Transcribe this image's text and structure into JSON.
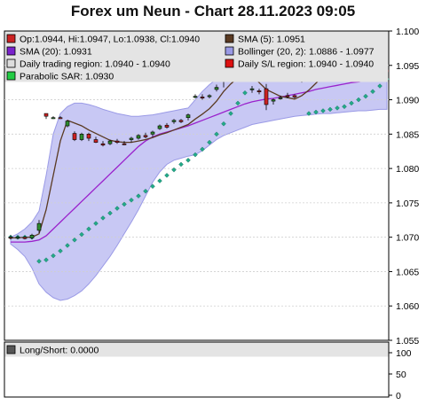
{
  "title": "Forex um Neun - Chart 28.11.2023 09:05",
  "colors": {
    "up": "#2e8b2e",
    "down": "#cc2222",
    "sma5": "#5a3a22",
    "sma20": "#9a22cc",
    "bollinger_fill": "#c8c8f4",
    "bollinger_line": "#9a9ae6",
    "sar": "#22aa88",
    "trading_region": "#ff8888",
    "legend_bg": "#e4e4e4"
  },
  "legend": [
    {
      "label": "Op:1.0944, Hi:1.0947, Lo:1.0938, Cl:1.0940",
      "swatch": "#cc2222",
      "row": 0,
      "col": 0
    },
    {
      "label": "SMA (5): 1.0951",
      "swatch": "#5a3a22",
      "row": 0,
      "col": 1
    },
    {
      "label": "SMA (20): 1.0931",
      "swatch": "#7a22cc",
      "row": 1,
      "col": 0
    },
    {
      "label": "Bollinger (20, 2): 1.0886 - 1.0977",
      "swatch": "#9a9ae6",
      "row": 1,
      "col": 1
    },
    {
      "label": "Daily trading region: 1.0940 - 1.0940",
      "swatch": "#dddddd",
      "row": 2,
      "col": 0
    },
    {
      "label": "Daily S/L region: 1.0940 - 1.0940",
      "swatch": "#dd1111",
      "row": 2,
      "col": 1
    },
    {
      "label": "Parabolic SAR: 1.0930",
      "swatch": "#22cc44",
      "row": 3,
      "col": 0
    }
  ],
  "lower_legend": {
    "label": "Long/Short: 0.0000",
    "swatch": "#555555"
  },
  "chart_data": [
    {
      "type": "candlestick",
      "y_ticks": [
        "1.100",
        "1.095",
        "1.090",
        "1.085",
        "1.080",
        "1.075",
        "1.070",
        "1.065",
        "1.060",
        "1.055"
      ],
      "ylim": [
        1.055,
        1.1
      ],
      "candles": [
        {
          "o": 1.07,
          "h": 1.0703,
          "l": 1.0697,
          "c": 1.0699
        },
        {
          "o": 1.0699,
          "h": 1.0702,
          "l": 1.0697,
          "c": 1.07
        },
        {
          "o": 1.07,
          "h": 1.0702,
          "l": 1.0697,
          "c": 1.0698
        },
        {
          "o": 1.0699,
          "h": 1.0705,
          "l": 1.0697,
          "c": 1.0703
        },
        {
          "o": 1.071,
          "h": 1.0725,
          "l": 1.0706,
          "c": 1.072
        },
        {
          "o": 1.088,
          "h": 1.088,
          "l": 1.0872,
          "c": 1.0876
        },
        {
          "o": 1.0874,
          "h": 1.0876,
          "l": 1.0872,
          "c": 1.0874
        },
        {
          "o": 1.0874,
          "h": 1.0876,
          "l": 1.0872,
          "c": 1.0873
        },
        {
          "o": 1.0862,
          "h": 1.087,
          "l": 1.086,
          "c": 1.0869
        },
        {
          "o": 1.0851,
          "h": 1.0854,
          "l": 1.084,
          "c": 1.0842
        },
        {
          "o": 1.0842,
          "h": 1.0852,
          "l": 1.084,
          "c": 1.085
        },
        {
          "o": 1.085,
          "h": 1.0852,
          "l": 1.084,
          "c": 1.0844
        },
        {
          "o": 1.0842,
          "h": 1.0846,
          "l": 1.0837,
          "c": 1.0838
        },
        {
          "o": 1.0836,
          "h": 1.084,
          "l": 1.0832,
          "c": 1.0834
        },
        {
          "o": 1.0836,
          "h": 1.0842,
          "l": 1.0834,
          "c": 1.084
        },
        {
          "o": 1.084,
          "h": 1.0843,
          "l": 1.0836,
          "c": 1.0838
        },
        {
          "o": 1.0836,
          "h": 1.084,
          "l": 1.0834,
          "c": 1.0835
        },
        {
          "o": 1.0842,
          "h": 1.0846,
          "l": 1.0838,
          "c": 1.0844
        },
        {
          "o": 1.0844,
          "h": 1.085,
          "l": 1.0842,
          "c": 1.0848
        },
        {
          "o": 1.0848,
          "h": 1.0852,
          "l": 1.0844,
          "c": 1.0846
        },
        {
          "o": 1.085,
          "h": 1.0855,
          "l": 1.0846,
          "c": 1.0853
        },
        {
          "o": 1.0858,
          "h": 1.0864,
          "l": 1.0856,
          "c": 1.0862
        },
        {
          "o": 1.0863,
          "h": 1.0866,
          "l": 1.0858,
          "c": 1.086
        },
        {
          "o": 1.0868,
          "h": 1.0872,
          "l": 1.0865,
          "c": 1.087
        },
        {
          "o": 1.087,
          "h": 1.0872,
          "l": 1.0866,
          "c": 1.0868
        },
        {
          "o": 1.0874,
          "h": 1.088,
          "l": 1.087,
          "c": 1.0878
        },
        {
          "o": 1.0905,
          "h": 1.0908,
          "l": 1.0902,
          "c": 1.0905
        },
        {
          "o": 1.0904,
          "h": 1.0908,
          "l": 1.09,
          "c": 1.0903
        },
        {
          "o": 1.0905,
          "h": 1.0908,
          "l": 1.0902,
          "c": 1.0906
        },
        {
          "o": 1.0915,
          "h": 1.0922,
          "l": 1.0912,
          "c": 1.0918
        },
        {
          "o": 1.0931,
          "h": 1.0942,
          "l": 1.0918,
          "c": 1.094
        },
        {
          "o": 1.094,
          "h": 1.0944,
          "l": 1.0935,
          "c": 1.0942
        },
        {
          "o": 1.0944,
          "h": 1.0948,
          "l": 1.094,
          "c": 1.0946
        },
        {
          "o": 1.0948,
          "h": 1.0952,
          "l": 1.094,
          "c": 1.0942
        },
        {
          "o": 1.0915,
          "h": 1.092,
          "l": 1.091,
          "c": 1.0916
        },
        {
          "o": 1.0913,
          "h": 1.0916,
          "l": 1.0908,
          "c": 1.0912
        },
        {
          "o": 1.0916,
          "h": 1.0923,
          "l": 1.0885,
          "c": 1.0893
        },
        {
          "o": 1.0898,
          "h": 1.0902,
          "l": 1.0893,
          "c": 1.09
        },
        {
          "o": 1.0902,
          "h": 1.0906,
          "l": 1.09,
          "c": 1.0903
        },
        {
          "o": 1.0906,
          "h": 1.091,
          "l": 1.0902,
          "c": 1.0905
        },
        {
          "o": 1.0906,
          "h": 1.0908,
          "l": 1.0902,
          "c": 1.0904
        },
        {
          "o": 1.093,
          "h": 1.0935,
          "l": 1.0925,
          "c": 1.0932
        },
        {
          "o": 1.0943,
          "h": 1.0947,
          "l": 1.094,
          "c": 1.0944
        },
        {
          "o": 1.0944,
          "h": 1.0946,
          "l": 1.094,
          "c": 1.0942
        },
        {
          "o": 1.0948,
          "h": 1.0952,
          "l": 1.0944,
          "c": 1.095
        },
        {
          "o": 1.0952,
          "h": 1.0956,
          "l": 1.0948,
          "c": 1.0954
        },
        {
          "o": 1.095,
          "h": 1.0953,
          "l": 1.0946,
          "c": 1.0948
        },
        {
          "o": 1.0948,
          "h": 1.095,
          "l": 1.0944,
          "c": 1.0946
        },
        {
          "o": 1.0942,
          "h": 1.0946,
          "l": 1.0938,
          "c": 1.0944
        },
        {
          "o": 1.095,
          "h": 1.0953,
          "l": 1.0947,
          "c": 1.0949
        },
        {
          "o": 1.0953,
          "h": 1.0956,
          "l": 1.095,
          "c": 1.0952
        },
        {
          "o": 1.0952,
          "h": 1.0954,
          "l": 1.0949,
          "c": 1.095
        },
        {
          "o": 1.0951,
          "h": 1.0953,
          "l": 1.0948,
          "c": 1.0949
        },
        {
          "o": 1.0944,
          "h": 1.0947,
          "l": 1.0938,
          "c": 1.094
        }
      ],
      "series": [
        {
          "name": "SMA (5)",
          "values": [
            1.0699,
            1.0699,
            1.07,
            1.07,
            1.0705,
            1.074,
            1.079,
            1.084,
            1.087,
            1.0866,
            1.0862,
            1.0856,
            1.0851,
            1.0846,
            1.0841,
            1.0839,
            1.0838,
            1.0838,
            1.084,
            1.0842,
            1.0845,
            1.0849,
            1.0852,
            1.0856,
            1.086,
            1.0864,
            1.0872,
            1.0879,
            1.0887,
            1.0898,
            1.0912,
            1.0923,
            1.0932,
            1.094,
            1.0935,
            1.0925,
            1.0915,
            1.091,
            1.0905,
            1.0903,
            1.0901,
            1.0906,
            1.0914,
            1.0924,
            1.0934,
            1.0944,
            1.0947,
            1.0949,
            1.0949,
            1.0949,
            1.095,
            1.095,
            1.0951,
            1.0951
          ]
        },
        {
          "name": "SMA (20)",
          "values": [
            1.0693,
            1.0693,
            1.0693,
            1.0694,
            1.0696,
            1.0702,
            1.0712,
            1.0722,
            1.0732,
            1.0742,
            1.0752,
            1.0762,
            1.0772,
            1.0782,
            1.0792,
            1.0802,
            1.0812,
            1.0822,
            1.0832,
            1.084,
            1.0846,
            1.085,
            1.0853,
            1.0856,
            1.0859,
            1.0862,
            1.0866,
            1.087,
            1.0874,
            1.0878,
            1.0882,
            1.0886,
            1.089,
            1.0894,
            1.0897,
            1.0899,
            1.0901,
            1.0902,
            1.0904,
            1.0906,
            1.0908,
            1.091,
            1.0912,
            1.0915,
            1.0917,
            1.0919,
            1.0921,
            1.0923,
            1.0925,
            1.0926,
            1.0928,
            1.0929,
            1.093,
            1.0931
          ]
        },
        {
          "name": "Bollinger upper",
          "values": [
            1.07,
            1.0705,
            1.0712,
            1.0722,
            1.0738,
            1.079,
            1.085,
            1.088,
            1.089,
            1.0895,
            1.0895,
            1.0893,
            1.089,
            1.0886,
            1.0883,
            1.088,
            1.0878,
            1.0876,
            1.0876,
            1.0877,
            1.0878,
            1.088,
            1.0882,
            1.0884,
            1.0886,
            1.0888,
            1.09,
            1.0912,
            1.0922,
            1.093,
            1.0938,
            1.0946,
            1.095,
            1.0954,
            1.0955,
            1.0955,
            1.0955,
            1.0953,
            1.095,
            1.0948,
            1.0946,
            1.0948,
            1.0952,
            1.0958,
            1.0965,
            1.097,
            1.0974,
            1.0977,
            1.0978,
            1.0978,
            1.0978,
            1.0978,
            1.0977,
            1.0977
          ]
        },
        {
          "name": "Bollinger lower",
          "values": [
            1.069,
            1.0682,
            1.0672,
            1.0655,
            1.0632,
            1.062,
            1.0612,
            1.0608,
            1.061,
            1.0615,
            1.0622,
            1.0632,
            1.0644,
            1.0658,
            1.0672,
            1.0688,
            1.0705,
            1.0722,
            1.074,
            1.076,
            1.078,
            1.0795,
            1.0806,
            1.0812,
            1.0815,
            1.0818,
            1.082,
            1.0826,
            1.0834,
            1.0842,
            1.0848,
            1.0852,
            1.0856,
            1.086,
            1.0864,
            1.0866,
            1.0868,
            1.087,
            1.0872,
            1.0874,
            1.0876,
            1.0877,
            1.0878,
            1.0879,
            1.088,
            1.088,
            1.0881,
            1.0882,
            1.0883,
            1.0884,
            1.0884,
            1.0885,
            1.0886,
            1.0886
          ]
        },
        {
          "name": "Parabolic SAR",
          "values": [
            1.07,
            1.07,
            1.07,
            1.07,
            1.0665,
            1.0667,
            1.0673,
            1.068,
            1.0688,
            1.0696,
            1.0704,
            1.0712,
            1.072,
            1.0728,
            1.0735,
            1.0742,
            1.0748,
            1.0754,
            1.076,
            1.0767,
            1.0774,
            1.0782,
            1.079,
            1.0798,
            1.0806,
            1.0812,
            1.082,
            1.0828,
            1.0838,
            1.085,
            1.0865,
            1.088,
            1.0895,
            1.091,
            1.095,
            1.0948,
            1.0947,
            1.0946,
            1.0945,
            1.0943,
            1.0941,
            1.0938,
            1.088,
            1.0882,
            1.0884,
            1.0886,
            1.0888,
            1.089,
            1.0895,
            1.09,
            1.0905,
            1.0912,
            1.092,
            1.093
          ]
        }
      ]
    },
    {
      "type": "line",
      "y_ticks": [
        "100",
        "50",
        "0"
      ],
      "ylim": [
        0,
        100
      ],
      "series": [
        {
          "name": "Long/Short",
          "values": []
        }
      ]
    }
  ]
}
